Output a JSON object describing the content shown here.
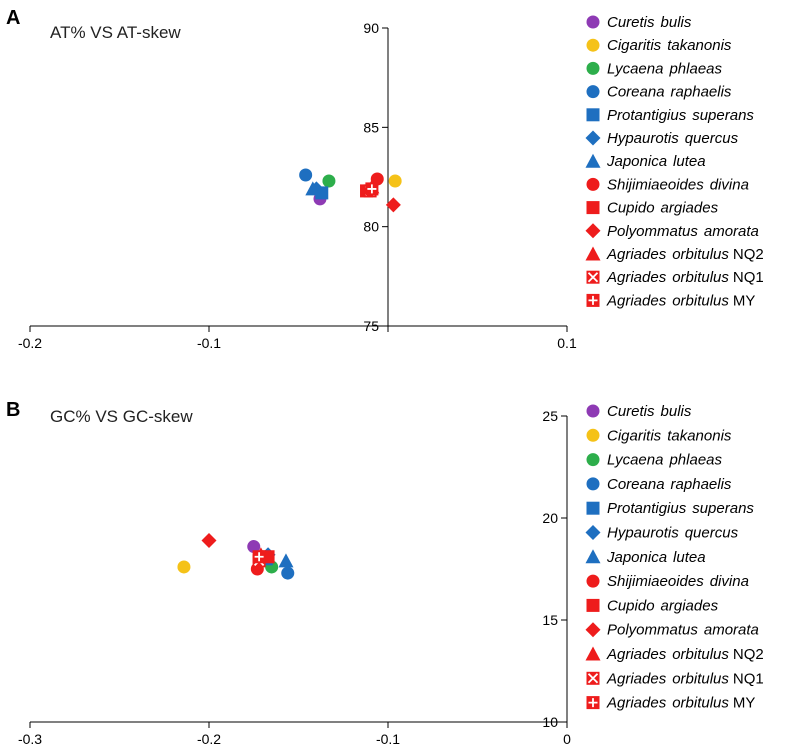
{
  "chart_data": [
    {
      "type": "scatter",
      "panel_label": "A",
      "title": "AT% VS AT-skew",
      "xlabel": "",
      "ylabel": "",
      "xlim": [
        -0.2,
        0.1
      ],
      "ylim": [
        75,
        90
      ],
      "x_ticks": [
        "-0.2",
        "-0.1",
        "0",
        "0.1"
      ],
      "x_tick_values": [
        -0.2,
        -0.1,
        0,
        0.1
      ],
      "y_ticks": [
        "75",
        "80",
        "85",
        "90"
      ],
      "y_tick_values": [
        75,
        80,
        85,
        90
      ],
      "x_tick_labels_shown": [
        "-0.2",
        "-0.1",
        "0.1"
      ],
      "grid": false,
      "legend_position": "right",
      "series": [
        {
          "genus": "Curetis",
          "species": "bulis",
          "suffix": "",
          "marker": "circle",
          "color": "#8E3AB4",
          "x": -0.038,
          "y": 81.4
        },
        {
          "genus": "Cigaritis",
          "species": "takanonis",
          "suffix": "",
          "marker": "circle",
          "color": "#F5C218",
          "x": 0.004,
          "y": 82.3
        },
        {
          "genus": "Lycaena",
          "species": "phlaeas",
          "suffix": "",
          "marker": "circle",
          "color": "#2DAE4B",
          "x": -0.033,
          "y": 82.3
        },
        {
          "genus": "Coreana",
          "species": "raphaelis",
          "suffix": "",
          "marker": "circle",
          "color": "#1E6FC0",
          "x": -0.046,
          "y": 82.6
        },
        {
          "genus": "Protantigius",
          "species": "superans",
          "suffix": "",
          "marker": "square",
          "color": "#1E6FC0",
          "x": -0.037,
          "y": 81.7
        },
        {
          "genus": "Hypaurotis",
          "species": "quercus",
          "suffix": "",
          "marker": "diamond",
          "color": "#1E6FC0",
          "x": -0.04,
          "y": 81.9
        },
        {
          "genus": "Japonica",
          "species": "lutea",
          "suffix": "",
          "marker": "triangle",
          "color": "#1E6FC0",
          "x": -0.042,
          "y": 81.9
        },
        {
          "genus": "Shijimiaeoides",
          "species": "divina",
          "suffix": "",
          "marker": "circle",
          "color": "#EE1C1C",
          "x": -0.006,
          "y": 82.4
        },
        {
          "genus": "Cupido",
          "species": "argiades",
          "suffix": "",
          "marker": "square",
          "color": "#EE1C1C",
          "x": -0.012,
          "y": 81.8
        },
        {
          "genus": "Polyommatus",
          "species": "amorata",
          "suffix": "",
          "marker": "diamond",
          "color": "#EE1C1C",
          "x": 0.003,
          "y": 81.1
        },
        {
          "genus": "Agriades",
          "species": "orbitulus",
          "suffix": "NQ2",
          "marker": "triangle",
          "color": "#EE1C1C",
          "x": -0.009,
          "y": 82.0
        },
        {
          "genus": "Agriades",
          "species": "orbitulus",
          "suffix": "NQ1",
          "marker": "square-x",
          "color": "#EE1C1C",
          "x": -0.01,
          "y": 81.8
        },
        {
          "genus": "Agriades",
          "species": "orbitulus",
          "suffix": "MY",
          "marker": "square-plus",
          "color": "#EE1C1C",
          "x": -0.009,
          "y": 81.9
        }
      ]
    },
    {
      "type": "scatter",
      "panel_label": "B",
      "title": "GC% VS GC-skew",
      "xlabel": "",
      "ylabel": "",
      "xlim": [
        -0.3,
        0
      ],
      "ylim": [
        10,
        25
      ],
      "x_ticks": [
        "-0.3",
        "-0.2",
        "-0.1",
        "0"
      ],
      "x_tick_values": [
        -0.3,
        -0.2,
        -0.1,
        0
      ],
      "y_ticks": [
        "10",
        "15",
        "20",
        "25"
      ],
      "y_tick_values": [
        10,
        15,
        20,
        25
      ],
      "x_tick_labels_shown": [
        "-0.3",
        "-0.2",
        "-0.1",
        "0"
      ],
      "grid": false,
      "legend_position": "right",
      "series": [
        {
          "genus": "Curetis",
          "species": "bulis",
          "suffix": "",
          "marker": "circle",
          "color": "#8E3AB4",
          "x": -0.175,
          "y": 18.6
        },
        {
          "genus": "Cigaritis",
          "species": "takanonis",
          "suffix": "",
          "marker": "circle",
          "color": "#F5C218",
          "x": -0.214,
          "y": 17.6
        },
        {
          "genus": "Lycaena",
          "species": "phlaeas",
          "suffix": "",
          "marker": "circle",
          "color": "#2DAE4B",
          "x": -0.165,
          "y": 17.6
        },
        {
          "genus": "Coreana",
          "species": "raphaelis",
          "suffix": "",
          "marker": "circle",
          "color": "#1E6FC0",
          "x": -0.156,
          "y": 17.3
        },
        {
          "genus": "Protantigius",
          "species": "superans",
          "suffix": "",
          "marker": "square",
          "color": "#1E6FC0",
          "x": -0.168,
          "y": 18.0
        },
        {
          "genus": "Hypaurotis",
          "species": "quercus",
          "suffix": "",
          "marker": "diamond",
          "color": "#1E6FC0",
          "x": -0.167,
          "y": 18.2
        },
        {
          "genus": "Japonica",
          "species": "lutea",
          "suffix": "",
          "marker": "triangle",
          "color": "#1E6FC0",
          "x": -0.157,
          "y": 17.9
        },
        {
          "genus": "Shijimiaeoides",
          "species": "divina",
          "suffix": "",
          "marker": "circle",
          "color": "#EE1C1C",
          "x": -0.173,
          "y": 17.5
        },
        {
          "genus": "Cupido",
          "species": "argiades",
          "suffix": "",
          "marker": "square",
          "color": "#EE1C1C",
          "x": -0.167,
          "y": 18.1
        },
        {
          "genus": "Polyommatus",
          "species": "amorata",
          "suffix": "",
          "marker": "diamond",
          "color": "#EE1C1C",
          "x": -0.2,
          "y": 18.9
        },
        {
          "genus": "Agriades",
          "species": "orbitulus",
          "suffix": "NQ2",
          "marker": "triangle",
          "color": "#EE1C1C",
          "x": -0.171,
          "y": 18.2
        },
        {
          "genus": "Agriades",
          "species": "orbitulus",
          "suffix": "NQ1",
          "marker": "square-x",
          "color": "#EE1C1C",
          "x": -0.172,
          "y": 17.9
        },
        {
          "genus": "Agriades",
          "species": "orbitulus",
          "suffix": "MY",
          "marker": "square-plus",
          "color": "#EE1C1C",
          "x": -0.172,
          "y": 18.1
        }
      ]
    }
  ]
}
